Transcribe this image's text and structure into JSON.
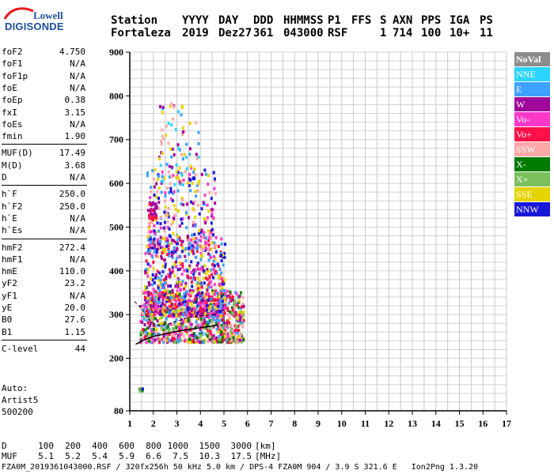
{
  "brand": {
    "company": "Lowell",
    "product": "DIGISONDE"
  },
  "header": {
    "labels": [
      "Station",
      "YYYY",
      "DAY",
      "DDD",
      "HHMMSS",
      "P1",
      "FFS",
      "S",
      "AXN",
      "PPS",
      "IGA",
      "PS"
    ],
    "values": [
      "Fortaleza",
      "2019",
      "Dez27",
      "361",
      "043000",
      "RSF",
      "",
      "1",
      "714",
      "100",
      "10+",
      "11"
    ]
  },
  "params_group1": [
    {
      "label": "foF2",
      "value": "4.750"
    },
    {
      "label": "foF1",
      "value": "N/A"
    },
    {
      "label": "foF1p",
      "value": "N/A"
    },
    {
      "label": "foE",
      "value": "N/A"
    },
    {
      "label": "foEp",
      "value": "0.38"
    },
    {
      "label": "fxI",
      "value": "3.15"
    },
    {
      "label": "foEs",
      "value": "N/A"
    },
    {
      "label": "fmin",
      "value": "1.90"
    }
  ],
  "params_group2": [
    {
      "label": "MUF(D)",
      "value": "17.49"
    },
    {
      "label": "M(D)",
      "value": "3.68"
    },
    {
      "label": "D",
      "value": "N/A"
    }
  ],
  "params_group3": [
    {
      "label": "h`F",
      "value": "250.0"
    },
    {
      "label": "h`F2",
      "value": "250.0"
    },
    {
      "label": "h`E",
      "value": "N/A"
    },
    {
      "label": "h`Es",
      "value": "N/A"
    }
  ],
  "params_group4": [
    {
      "label": "hmF2",
      "value": "272.4"
    },
    {
      "label": "hmF1",
      "value": "N/A"
    },
    {
      "label": "hmE",
      "value": "110.0"
    },
    {
      "label": "yF2",
      "value": "23.2"
    },
    {
      "label": "yF1",
      "value": "N/A"
    },
    {
      "label": "yE",
      "value": "20.0"
    },
    {
      "label": "B0",
      "value": "27.6"
    },
    {
      "label": "B1",
      "value": "1.15"
    }
  ],
  "params_group5": [
    {
      "label": "C-level",
      "value": "44"
    }
  ],
  "autoscaling": {
    "line1": "Auto:",
    "line2": "Artist5",
    "line3": "500200"
  },
  "legend": [
    {
      "label": "NoVal",
      "color": "#8c8c8c"
    },
    {
      "label": "NNE",
      "color": "#2bd5ff"
    },
    {
      "label": "E",
      "color": "#3ea0ff"
    },
    {
      "label": "W",
      "color": "#a0089b"
    },
    {
      "label": "Vo-",
      "color": "#ff38c8"
    },
    {
      "label": "Vo+",
      "color": "#ff1048"
    },
    {
      "label": "SSW",
      "color": "#ffa8a8"
    },
    {
      "label": "X-",
      "color": "#007a00"
    },
    {
      "label": "X+",
      "color": "#7ac05a"
    },
    {
      "label": "SSE",
      "color": "#e6d400"
    },
    {
      "label": "NNW",
      "color": "#1818d8"
    }
  ],
  "bottom_table": {
    "d_label": "D",
    "d_values": [
      "100",
      "200",
      "400",
      "600",
      "800",
      "1000",
      "1500",
      "3000"
    ],
    "d_unit": "[km]",
    "muf_label": "MUF",
    "muf_values": [
      "5.1",
      "5.2",
      "5.4",
      "5.9",
      "6.6",
      "7.5",
      "10.3",
      "17.5"
    ],
    "muf_unit": "[MHz]"
  },
  "footer": "FZA0M_2019361043000.RSF / 320fx256h 50 kHz 5.0 km / DPS-4 FZA0M 904 / 3.9 S 321.6 E   Ion2Png 1.3.20",
  "chart_data": {
    "type": "scatter",
    "xlim": [
      1,
      17
    ],
    "ylim": [
      80,
      900
    ],
    "x_ticks": [
      1,
      2,
      3,
      4,
      5,
      6,
      7,
      8,
      9,
      10,
      11,
      12,
      13,
      14,
      15,
      16,
      17
    ],
    "y_ticks": [
      80,
      200,
      300,
      400,
      500,
      600,
      700,
      800,
      900
    ],
    "grid": true,
    "trace_curve": {
      "x": [
        1.25,
        1.6,
        2.0,
        2.5,
        3.0,
        3.5,
        4.0,
        4.5,
        4.75
      ],
      "y": [
        232,
        242,
        250,
        256,
        262,
        266,
        270,
        274,
        276
      ]
    },
    "dashed_curve": {
      "x": [
        1.2,
        1.4,
        1.6,
        1.8,
        2.0,
        2.3,
        2.6,
        3.0,
        3.4,
        3.8,
        4.2,
        4.6
      ],
      "y": [
        330,
        320,
        305,
        290,
        280,
        275,
        278,
        285,
        292,
        296,
        298,
        300
      ]
    },
    "echo_regions": [
      {
        "x": [
          1.4,
          5.8
        ],
        "y": [
          240,
          360
        ],
        "density": 900,
        "colors": [
          "#ff1048",
          "#ff38c8",
          "#a0089b",
          "#7ac05a",
          "#007a00",
          "#e6d400",
          "#ffa8a8",
          "#3ea0ff"
        ]
      },
      {
        "x": [
          1.6,
          5.0
        ],
        "y": [
          300,
          480
        ],
        "density": 650,
        "colors": [
          "#ff1048",
          "#ff38c8",
          "#a0089b",
          "#3ea0ff",
          "#1818d8",
          "#e6d400"
        ]
      },
      {
        "x": [
          1.7,
          4.6
        ],
        "y": [
          450,
          640
        ],
        "density": 260,
        "colors": [
          "#ff38c8",
          "#a0089b",
          "#e6d400",
          "#3ea0ff",
          "#1818d8",
          "#ffa8a8"
        ]
      },
      {
        "x": [
          2.2,
          3.9
        ],
        "y": [
          600,
          790
        ],
        "density": 90,
        "colors": [
          "#ffa8a8",
          "#e6d400",
          "#a0089b",
          "#3ea0ff",
          "#2bd5ff"
        ]
      },
      {
        "x": [
          1.75,
          2.1
        ],
        "y": [
          520,
          560
        ],
        "density": 30,
        "colors": [
          "#ff1048",
          "#a0089b"
        ]
      },
      {
        "x": [
          1.3,
          1.6
        ],
        "y": [
          128,
          134
        ],
        "density": 8,
        "colors": [
          "#007a00",
          "#1818d8",
          "#7ac05a"
        ]
      }
    ]
  }
}
